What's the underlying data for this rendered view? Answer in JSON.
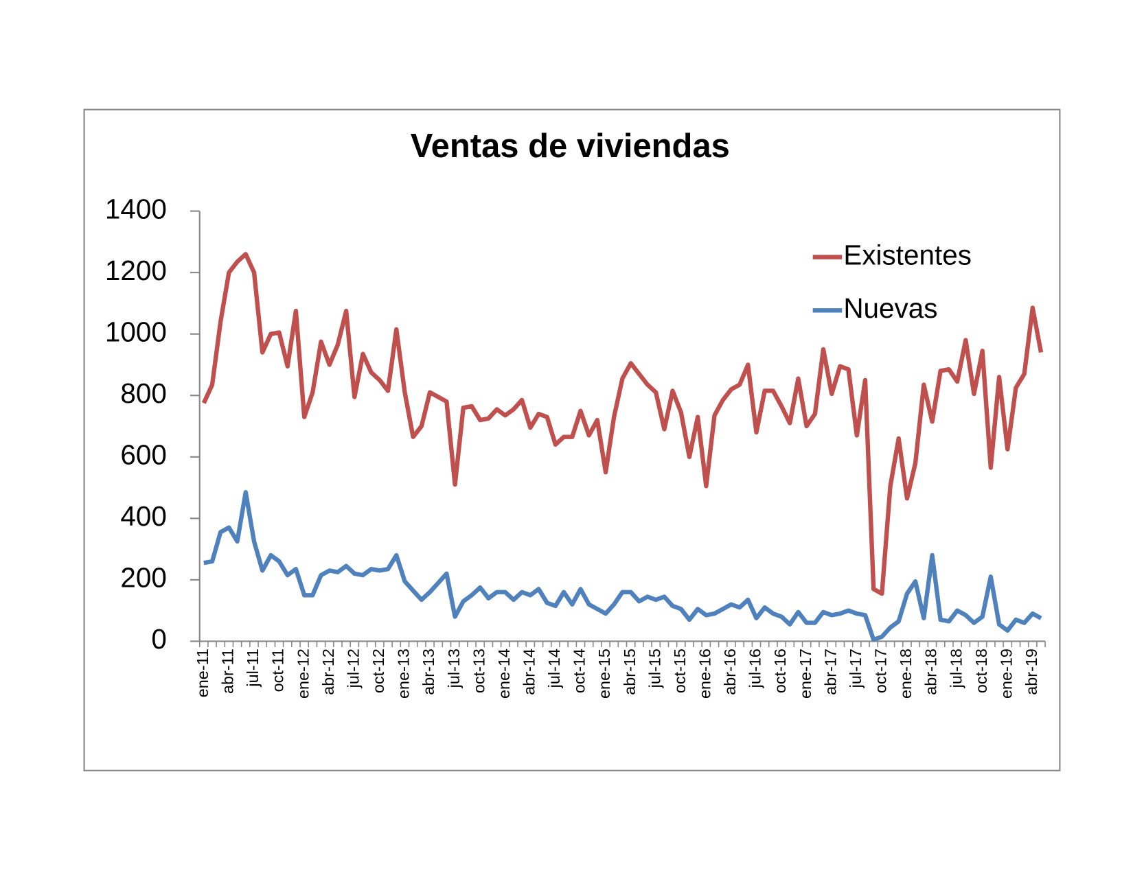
{
  "chart_data": {
    "type": "line",
    "title": "Ventas de viviendas",
    "categories": [
      "ene-11",
      null,
      null,
      "abr-11",
      null,
      null,
      "jul-11",
      null,
      null,
      "oct-11",
      null,
      null,
      "ene-12",
      null,
      null,
      "abr-12",
      null,
      null,
      "jul-12",
      null,
      null,
      "oct-12",
      null,
      null,
      "ene-13",
      null,
      null,
      "abr-13",
      null,
      null,
      "jul-13",
      null,
      null,
      "oct-13",
      null,
      null,
      "ene-14",
      null,
      null,
      "abr-14",
      null,
      null,
      "jul-14",
      null,
      null,
      "oct-14",
      null,
      null,
      "ene-15",
      null,
      null,
      "abr-15",
      null,
      null,
      "jul-15",
      null,
      null,
      "oct-15",
      null,
      null,
      "ene-16",
      null,
      null,
      "abr-16",
      null,
      null,
      "jul-16",
      null,
      null,
      "oct-16",
      null,
      null,
      "ene-17",
      null,
      null,
      "abr-17",
      null,
      null,
      "jul-17",
      null,
      null,
      "oct-17",
      null,
      null,
      "ene-18",
      null,
      null,
      "abr-18",
      null,
      null,
      "jul-18",
      null,
      null,
      "oct-18",
      null,
      null,
      "ene-19",
      null,
      null,
      "abr-19",
      null
    ],
    "series": [
      {
        "name": "Existentes",
        "color": "#c0504d",
        "values": [
          775,
          835,
          1040,
          1200,
          1235,
          1260,
          1200,
          940,
          1000,
          1005,
          895,
          1075,
          730,
          810,
          975,
          900,
          965,
          1075,
          795,
          935,
          875,
          850,
          815,
          1015,
          810,
          665,
          700,
          810,
          795,
          780,
          510,
          760,
          765,
          720,
          725,
          755,
          735,
          755,
          785,
          695,
          740,
          730,
          640,
          665,
          665,
          750,
          670,
          720,
          550,
          730,
          855,
          905,
          870,
          835,
          810,
          690,
          815,
          745,
          600,
          730,
          505,
          735,
          785,
          820,
          835,
          900,
          680,
          815,
          815,
          765,
          710,
          855,
          700,
          740,
          950,
          805,
          895,
          885,
          670,
          850,
          170,
          155,
          505,
          660,
          465,
          580,
          835,
          715,
          880,
          885,
          845,
          980,
          805,
          945,
          565,
          860,
          625,
          825,
          870,
          1085,
          940
        ]
      },
      {
        "name": "Nuevas",
        "color": "#4f81bd",
        "values": [
          255,
          260,
          355,
          370,
          325,
          485,
          325,
          230,
          280,
          260,
          215,
          235,
          150,
          150,
          215,
          230,
          225,
          245,
          220,
          215,
          235,
          230,
          235,
          280,
          195,
          165,
          135,
          160,
          190,
          220,
          80,
          130,
          150,
          175,
          140,
          160,
          160,
          135,
          160,
          150,
          170,
          125,
          115,
          160,
          120,
          170,
          120,
          105,
          90,
          120,
          160,
          160,
          130,
          145,
          135,
          145,
          115,
          105,
          70,
          105,
          85,
          90,
          105,
          120,
          110,
          135,
          75,
          110,
          90,
          80,
          55,
          95,
          60,
          60,
          95,
          85,
          90,
          100,
          90,
          85,
          5,
          15,
          45,
          65,
          155,
          195,
          75,
          280,
          70,
          65,
          100,
          85,
          60,
          80,
          210,
          55,
          35,
          70,
          60,
          90,
          75
        ]
      }
    ],
    "ylim": [
      0,
      1400
    ],
    "yticks": [
      0,
      200,
      400,
      600,
      800,
      1000,
      1200,
      1400
    ],
    "legend": "upper right"
  }
}
